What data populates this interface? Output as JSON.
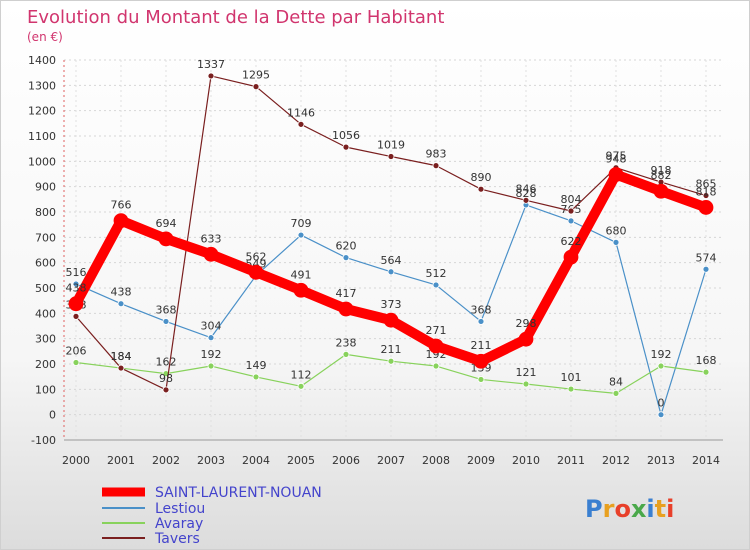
{
  "header": {
    "title": "Evolution du Montant de la Dette par Habitant",
    "unit": "(en €)"
  },
  "logo": {
    "text": "Proxiti"
  },
  "colors": {
    "title": "#d1356e",
    "background_top": "#ffffff",
    "background_bottom": "#dcdcdc"
  },
  "chart_data": {
    "type": "line",
    "x": [
      "2000",
      "2001",
      "2002",
      "2003",
      "2004",
      "2005",
      "2006",
      "2007",
      "2008",
      "2009",
      "2010",
      "2011",
      "2012",
      "2013",
      "2014"
    ],
    "ylim": [
      -100,
      1400
    ],
    "yticks": [
      -100,
      0,
      100,
      200,
      300,
      400,
      500,
      600,
      700,
      800,
      900,
      1000,
      1100,
      1200,
      1300,
      1400
    ],
    "grid": true,
    "legend_position": "bottom-left",
    "series": [
      {
        "name": "SAINT-LAURENT-NOUAN",
        "color": "#ff0000",
        "line_width": 10,
        "marker_radius": 7,
        "values": [
          438,
          766,
          694,
          633,
          562,
          491,
          417,
          373,
          271,
          211,
          298,
          622,
          948,
          882,
          818
        ],
        "labels": [
          "438",
          "766",
          "694",
          "633",
          "562",
          "491",
          "417",
          "373",
          "271",
          "211",
          "298",
          "622",
          "948",
          "882",
          "818"
        ]
      },
      {
        "name": "Lestiou",
        "color": "#4a90c8",
        "line_width": 1.2,
        "marker_radius": 3,
        "values": [
          516,
          438,
          368,
          304,
          549,
          709,
          620,
          564,
          512,
          368,
          828,
          765,
          680,
          0,
          574
        ],
        "labels": [
          "516",
          "438",
          "368",
          "304",
          "549",
          "709",
          "620",
          "564",
          "512",
          "368",
          "828",
          "765",
          "680",
          "0",
          "574"
        ]
      },
      {
        "name": "Avaray",
        "color": "#88d25c",
        "line_width": 1.2,
        "marker_radius": 3,
        "values": [
          206,
          184,
          162,
          192,
          149,
          112,
          238,
          211,
          192,
          139,
          121,
          101,
          84,
          192,
          168
        ],
        "labels": [
          "206",
          "184",
          "162",
          "192",
          "149",
          "112",
          "238",
          "211",
          "192",
          "139",
          "121",
          "101",
          "84",
          "192",
          "168"
        ]
      },
      {
        "name": "Tavers",
        "color": "#7a1f1f",
        "line_width": 1.2,
        "marker_radius": 3,
        "values": [
          388,
          184,
          98,
          1337,
          1295,
          1146,
          1056,
          1019,
          983,
          890,
          846,
          804,
          975,
          918,
          865
        ],
        "labels": [
          "388",
          "184",
          "98",
          "1337",
          "1295",
          "1146",
          "1056",
          "1019",
          "983",
          "890",
          "846",
          "804",
          "975",
          "918",
          "865"
        ]
      }
    ]
  }
}
